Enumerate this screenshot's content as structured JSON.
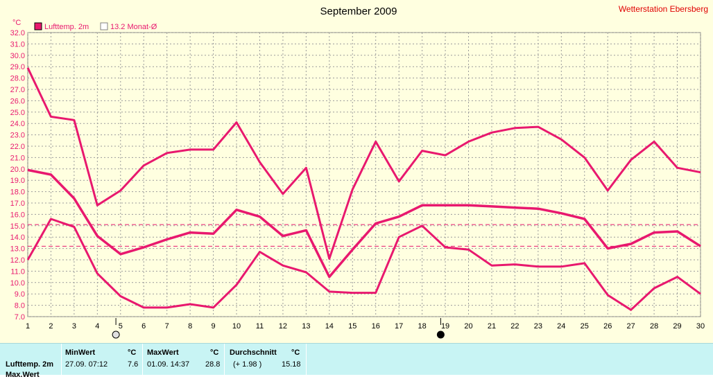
{
  "title": "September 2009",
  "station": "Wetterstation Ebersberg",
  "unit_label": "°C",
  "legend": [
    {
      "label": "Lufttemp. 2m",
      "filled": true
    },
    {
      "label": "13.2 Monat-Ø",
      "filled": false
    }
  ],
  "colors": {
    "background": "#ffffe0",
    "series": "#e8186e",
    "grid": "#9a9a9a",
    "title_text": "#000000",
    "axis_text": "#e8186e",
    "station_text": "#e00000"
  },
  "chart_data": {
    "type": "line",
    "xlim": [
      1,
      30
    ],
    "ylim": [
      7.0,
      32.0
    ],
    "x_ticks": [
      1,
      2,
      3,
      4,
      5,
      6,
      7,
      8,
      9,
      10,
      11,
      12,
      13,
      14,
      15,
      16,
      17,
      18,
      19,
      20,
      21,
      22,
      23,
      24,
      25,
      26,
      27,
      28,
      29,
      30
    ],
    "y_ticks": [
      "32.0",
      "31.0",
      "30.0",
      "29.0",
      "28.0",
      "27.0",
      "26.0",
      "25.0",
      "24.0",
      "23.0",
      "22.0",
      "21.0",
      "20.0",
      "19.0",
      "18.0",
      "17.0",
      "16.0",
      "15.0",
      "14.0",
      "13.0",
      "12.0",
      "11.0",
      "10.0",
      "9.0",
      "8.0",
      "7.0"
    ],
    "grid": true,
    "series": [
      {
        "role": "max",
        "x": [
          1,
          2,
          3,
          4,
          5,
          6,
          7,
          8,
          9,
          10,
          11,
          12,
          13,
          14,
          15,
          16,
          17,
          18,
          19,
          20,
          21,
          22,
          23,
          24,
          25,
          26,
          27,
          28,
          29,
          30
        ],
        "values": [
          28.9,
          24.6,
          24.3,
          16.8,
          18.1,
          20.3,
          21.4,
          21.7,
          21.7,
          24.1,
          20.6,
          17.8,
          20.1,
          12.1,
          18.2,
          22.4,
          18.9,
          21.6,
          21.2,
          22.4,
          23.2,
          23.6,
          23.7,
          22.6,
          21.0,
          18.1,
          20.8,
          22.4,
          20.1,
          19.7
        ]
      },
      {
        "role": "mean",
        "x": [
          1,
          2,
          3,
          4,
          5,
          6,
          7,
          8,
          9,
          10,
          11,
          12,
          13,
          14,
          15,
          16,
          17,
          18,
          19,
          20,
          21,
          22,
          23,
          24,
          25,
          26,
          27,
          28,
          29,
          30
        ],
        "values": [
          19.9,
          19.5,
          17.4,
          14.1,
          12.5,
          13.1,
          13.8,
          14.4,
          14.3,
          16.4,
          15.8,
          14.1,
          14.6,
          10.5,
          12.9,
          15.2,
          15.8,
          16.8,
          16.8,
          16.8,
          16.7,
          16.6,
          16.5,
          16.1,
          15.6,
          13.0,
          13.4,
          14.4,
          14.5,
          13.2
        ]
      },
      {
        "role": "min",
        "x": [
          1,
          2,
          3,
          4,
          5,
          6,
          7,
          8,
          9,
          10,
          11,
          12,
          13,
          14,
          15,
          16,
          17,
          18,
          19,
          20,
          21,
          22,
          23,
          24,
          25,
          26,
          27,
          28,
          29,
          30
        ],
        "values": [
          12.0,
          15.6,
          14.9,
          10.8,
          8.8,
          7.8,
          7.8,
          8.1,
          7.8,
          9.8,
          12.7,
          11.5,
          10.9,
          9.2,
          9.1,
          9.1,
          14.0,
          15.0,
          13.1,
          12.9,
          11.5,
          11.6,
          11.4,
          11.4,
          11.7,
          8.9,
          7.6,
          9.5,
          10.5,
          9.0
        ]
      }
    ],
    "reference_lines": [
      {
        "value": 13.2
      },
      {
        "value": 15.1
      }
    ],
    "moon_markers": [
      {
        "x": 4.8,
        "phase": "full"
      },
      {
        "x": 18.8,
        "phase": "new"
      }
    ]
  },
  "stats": {
    "row_label": "Lufttemp. 2m",
    "min_header": "MinWert",
    "min_unit_header": "°C",
    "min_time": "27.09.  07:12",
    "min_value": "7.6",
    "max_header": "MaxWert",
    "max_unit_header": "°C",
    "max_time": "01.09.  14:37",
    "max_value": "28.8",
    "avg_header": "Durchschnitt",
    "avg_unit_header": "°C",
    "avg_delta": "(+ 1.98 )",
    "avg_value": "15.18",
    "next_row_label": "Max.Wert"
  }
}
